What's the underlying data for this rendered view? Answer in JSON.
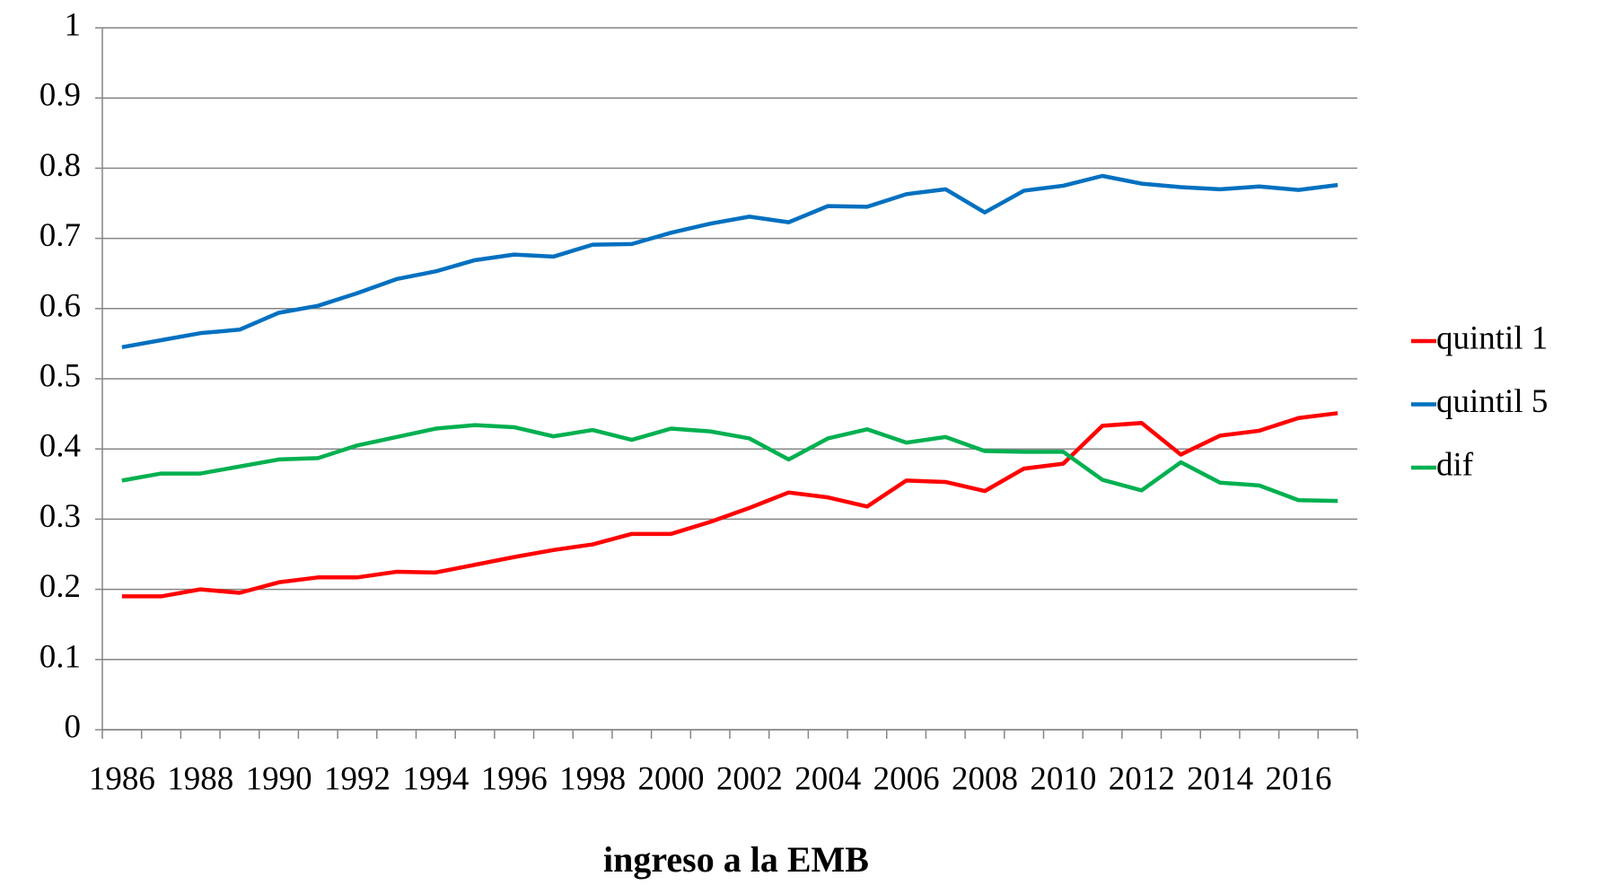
{
  "chart_data": {
    "type": "line",
    "xlabel": "ingreso a la EMB",
    "categories": [
      "1986",
      null,
      "1988",
      null,
      "1990",
      null,
      "1992",
      null,
      "1994",
      null,
      "1996",
      null,
      "1998",
      null,
      "2000",
      null,
      "2002",
      null,
      "2004",
      null,
      "2006",
      null,
      "2008",
      null,
      "2010",
      null,
      "2012",
      null,
      "2014",
      null,
      "2016",
      null
    ],
    "series": [
      {
        "name": "quintil 1",
        "color": "#ff0000",
        "values": [
          0.19,
          0.19,
          0.2,
          0.195,
          0.21,
          0.217,
          0.217,
          0.225,
          0.224,
          0.235,
          0.246,
          0.256,
          0.264,
          0.279,
          0.279,
          0.296,
          0.316,
          0.338,
          0.331,
          0.318,
          0.355,
          0.353,
          0.34,
          0.372,
          0.379,
          0.433,
          0.437,
          0.392,
          0.419,
          0.426,
          0.444,
          0.451
        ]
      },
      {
        "name": "quintil 5",
        "color": "#0070c0",
        "values": [
          0.545,
          0.555,
          0.565,
          0.57,
          0.594,
          0.604,
          0.622,
          0.642,
          0.653,
          0.669,
          0.677,
          0.674,
          0.691,
          0.692,
          0.708,
          0.721,
          0.731,
          0.723,
          0.746,
          0.745,
          0.763,
          0.77,
          0.737,
          0.768,
          0.775,
          0.789,
          0.778,
          0.773,
          0.77,
          0.774,
          0.769,
          0.776
        ]
      },
      {
        "name": "dif",
        "color": "#00b050",
        "values": [
          0.355,
          0.365,
          0.365,
          0.375,
          0.385,
          0.387,
          0.405,
          0.417,
          0.429,
          0.434,
          0.431,
          0.418,
          0.427,
          0.413,
          0.429,
          0.425,
          0.415,
          0.385,
          0.415,
          0.428,
          0.409,
          0.417,
          0.397,
          0.396,
          0.396,
          0.356,
          0.341,
          0.381,
          0.352,
          0.348,
          0.327,
          0.326
        ]
      }
    ],
    "ylim": [
      0,
      1
    ],
    "yticks": [
      0,
      0.1,
      0.2,
      0.3,
      0.4,
      0.5,
      0.6,
      0.7,
      0.8,
      0.9,
      1
    ],
    "grid": true,
    "legend": "right"
  }
}
